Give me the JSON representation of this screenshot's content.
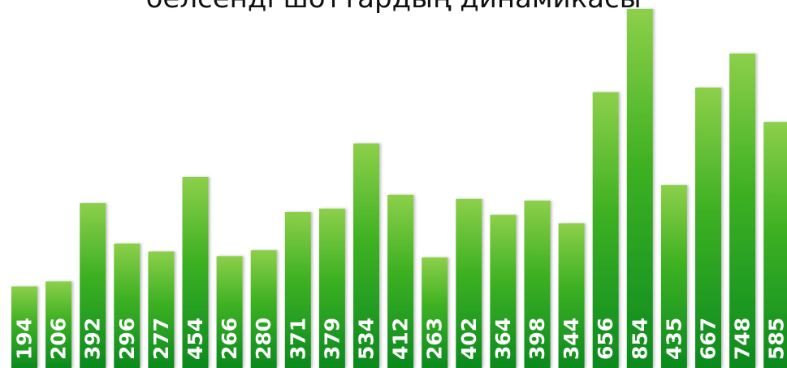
{
  "chart_data": {
    "type": "bar",
    "title": "белсенді шоттардың динамикасы",
    "values": [
      194,
      206,
      392,
      296,
      277,
      454,
      266,
      280,
      371,
      379,
      534,
      412,
      263,
      402,
      364,
      398,
      344,
      656,
      854,
      435,
      667,
      748,
      585
    ],
    "data_labels": [
      "194",
      "206",
      "392",
      "296",
      "277",
      "454",
      "266",
      "280",
      "371",
      "379",
      "534",
      "412",
      "263",
      "402",
      "364",
      "398",
      "344",
      "656",
      "854",
      "435",
      "667",
      "748",
      "585"
    ],
    "xlabel": "",
    "ylabel": "",
    "ylim": [
      0,
      854
    ],
    "grid": false,
    "legend": "none"
  },
  "colors": {
    "bar_top": "#8ccf4a",
    "bar_mid": "#3cb021",
    "bar_bottom": "#0c8a1f",
    "label": "#ffffff",
    "title": "#111111"
  }
}
